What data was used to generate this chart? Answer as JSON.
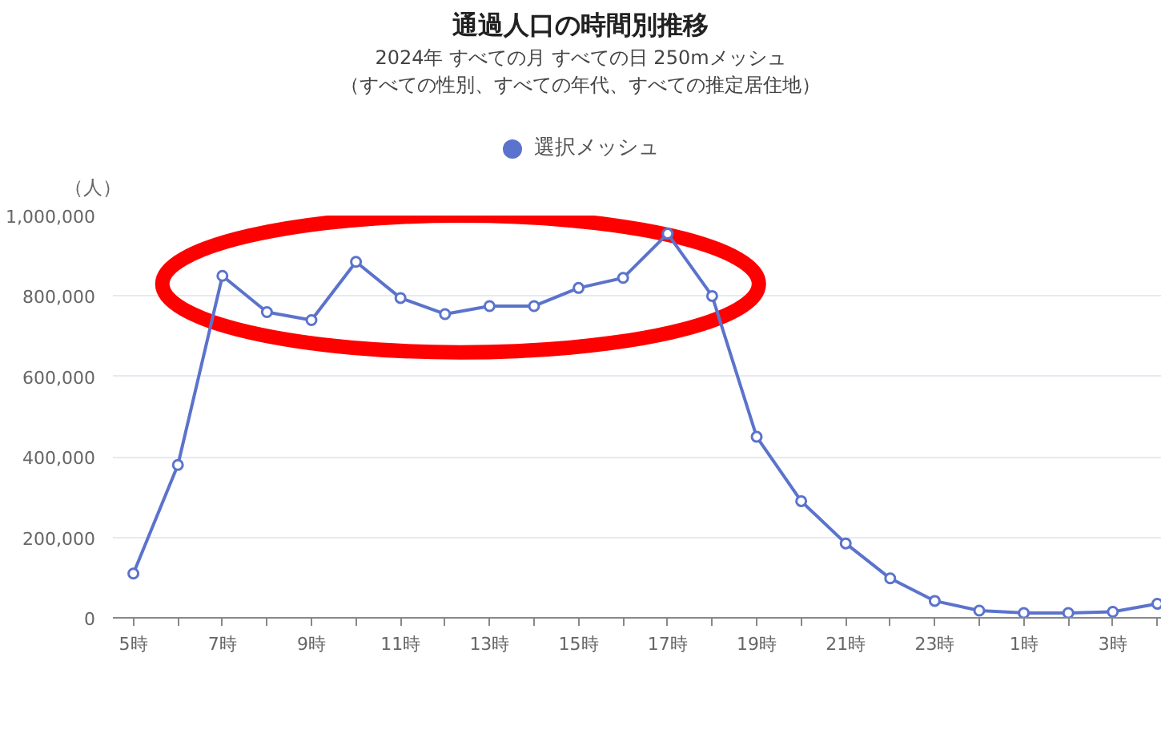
{
  "chart_data": {
    "type": "line",
    "title": "通過人口の時間別推移",
    "subtitle": "2024年 すべての月 すべての日 250mメッシュ",
    "annotations": [
      "（すべての性別、すべての年代、すべての推定居住地）"
    ],
    "ylabel": "（人）",
    "categories": [
      "5時",
      null,
      "7時",
      null,
      "9時",
      null,
      "11時",
      null,
      "13時",
      null,
      "15時",
      null,
      "17時",
      null,
      "19時",
      null,
      "21時",
      null,
      "23時",
      null,
      "1時",
      null,
      "3時",
      null
    ],
    "series": [
      {
        "name": "選択メッシュ",
        "color": "#5b73cc",
        "values": [
          110000,
          380000,
          850000,
          760000,
          740000,
          885000,
          795000,
          755000,
          775000,
          775000,
          820000,
          845000,
          955000,
          800000,
          450000,
          290000,
          185000,
          98000,
          42000,
          18000,
          12000,
          12000,
          15000,
          35000
        ]
      }
    ],
    "ylim": [
      0,
      1000000
    ],
    "yticks": [
      0,
      {
        "value": 200000,
        "label": "200,000"
      },
      {
        "value": 400000,
        "label": "400,000"
      },
      {
        "value": 600000,
        "label": "600,000"
      },
      {
        "value": 800000,
        "label": "800,000"
      },
      {
        "value": 1000000,
        "label": "1,000,000"
      }
    ],
    "grid": "y",
    "legend": "top",
    "marker": "circle",
    "line_style": "solid"
  }
}
